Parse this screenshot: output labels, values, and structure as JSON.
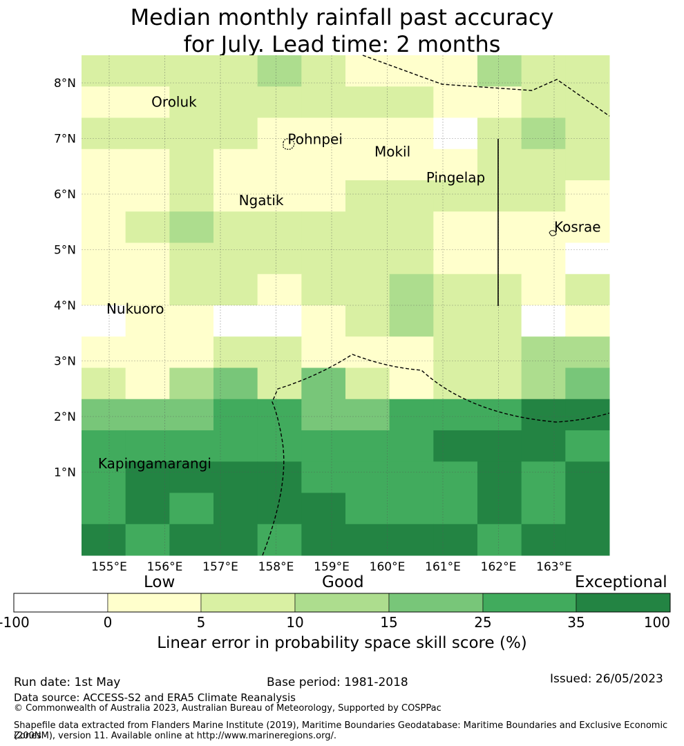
{
  "title": {
    "line1": "Median monthly rainfall past accuracy",
    "line2": "for July. Lead time: 2 months"
  },
  "map": {
    "x_ticks": [
      "155°E",
      "156°E",
      "157°E",
      "158°E",
      "159°E",
      "160°E",
      "161°E",
      "162°E",
      "163°E"
    ],
    "y_ticks": [
      "8°N",
      "7°N",
      "6°N",
      "5°N",
      "4°N",
      "3°N",
      "2°N",
      "1°N"
    ],
    "places": [
      {
        "name": "Oroluk",
        "lon": 155.76,
        "lat": 7.57
      },
      {
        "name": "Pohnpei",
        "lon": 158.21,
        "lat": 6.9
      },
      {
        "name": "Mokil",
        "lon": 159.77,
        "lat": 6.68
      },
      {
        "name": "Pingelap",
        "lon": 160.7,
        "lat": 6.21
      },
      {
        "name": "Ngatik",
        "lon": 157.33,
        "lat": 5.8
      },
      {
        "name": "Kosrae",
        "lon": 163.0,
        "lat": 5.32
      },
      {
        "name": "Nukuoro",
        "lon": 154.95,
        "lat": 3.85
      },
      {
        "name": "Kapingamarangi",
        "lon": 154.8,
        "lat": 1.07
      }
    ],
    "grid_rows_north_to_south": [
      [
        2,
        2,
        2,
        2,
        3,
        2,
        1,
        1,
        1,
        3,
        2,
        2
      ],
      [
        1,
        1,
        2,
        2,
        2,
        2,
        2,
        2,
        1,
        1,
        2,
        2
      ],
      [
        2,
        2,
        2,
        2,
        1,
        1,
        1,
        1,
        0,
        2,
        3,
        2
      ],
      [
        1,
        1,
        2,
        1,
        1,
        1,
        1,
        1,
        1,
        2,
        2,
        2
      ],
      [
        1,
        1,
        2,
        1,
        1,
        1,
        2,
        2,
        2,
        2,
        2,
        1
      ],
      [
        1,
        2,
        3,
        2,
        2,
        2,
        2,
        2,
        1,
        1,
        1,
        1
      ],
      [
        1,
        1,
        2,
        2,
        2,
        2,
        2,
        2,
        1,
        1,
        1,
        0
      ],
      [
        1,
        1,
        2,
        2,
        1,
        2,
        2,
        3,
        2,
        2,
        1,
        2
      ],
      [
        0,
        1,
        1,
        0,
        0,
        1,
        2,
        3,
        2,
        2,
        0,
        1
      ],
      [
        1,
        1,
        1,
        2,
        2,
        1,
        1,
        1,
        2,
        2,
        3,
        3
      ],
      [
        2,
        1,
        3,
        4,
        2,
        4,
        2,
        1,
        2,
        2,
        3,
        4
      ],
      [
        4,
        4,
        4,
        5,
        5,
        4,
        4,
        5,
        5,
        5,
        6,
        6
      ],
      [
        5,
        5,
        5,
        5,
        5,
        5,
        5,
        5,
        6,
        6,
        6,
        5
      ],
      [
        5,
        6,
        6,
        6,
        6,
        5,
        5,
        5,
        5,
        6,
        5,
        6
      ],
      [
        5,
        6,
        5,
        6,
        6,
        6,
        5,
        5,
        5,
        6,
        5,
        6
      ],
      [
        6,
        5,
        6,
        6,
        5,
        6,
        6,
        6,
        6,
        5,
        6,
        6
      ]
    ],
    "color_class_note": "grid values index into colorbar.colors"
  },
  "colorbar": {
    "header_low": "Low",
    "header_good": "Good",
    "header_exceptional": "Exceptional",
    "ticks": [
      "-100",
      "0",
      "5",
      "10",
      "15",
      "25",
      "35",
      "100"
    ],
    "colors": [
      "#ffffff",
      "#ffffcc",
      "#d9f0a3",
      "#addd8e",
      "#78c679",
      "#41ab5d",
      "#238443"
    ],
    "label": "Linear error in probability space skill score (%)"
  },
  "footer": {
    "run_date": "Run date: 1st May",
    "base_period": "Base period: 1981-2018",
    "issued": "Issued: 26/05/2023",
    "data_source": "Data source: ACCESS-S2 and ERA5 Climate Reanalysis",
    "copyright": "© Commonwealth of Australia 2023, Australian Bureau of Meteorology, Supported by COSPPac",
    "shapefile_line1": "Shapefile data extracted from Flanders Marine Institute (2019), Maritime Boundaries Geodatabase: Maritime Boundaries and Exclusive Economic Zones",
    "shapefile_line2": "(200NM), version 11. Available online at http://www.marineregions.org/."
  }
}
